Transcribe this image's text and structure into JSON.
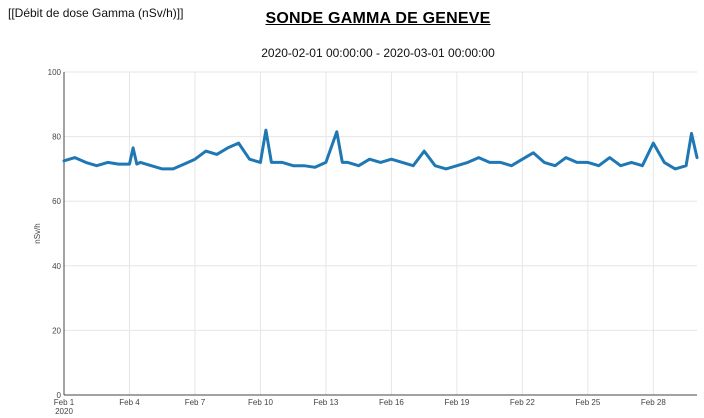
{
  "header": {
    "top_left_label": "[[Débit de dose Gamma (nSv/h)]]",
    "title": "SONDE GAMMA DE GENEVE",
    "subtitle": "2020-02-01 00:00:00 - 2020-03-01 00:00:00"
  },
  "chart_data": {
    "type": "line",
    "title": "SONDE GAMMA DE GENEVE",
    "subtitle": "2020-02-01 00:00:00 - 2020-03-01 00:00:00",
    "xlabel": "",
    "ylabel": "nSv/h",
    "x_range": [
      "2020-02-01 00:00",
      "2020-03-01 00:00"
    ],
    "ylim": [
      0,
      100
    ],
    "y_ticks": [
      0,
      20,
      40,
      60,
      80,
      100
    ],
    "x_ticks": [
      {
        "date": "2020-02-01",
        "label": "Feb 1",
        "sublabel": "2020"
      },
      {
        "date": "2020-02-04",
        "label": "Feb 4"
      },
      {
        "date": "2020-02-07",
        "label": "Feb 7"
      },
      {
        "date": "2020-02-10",
        "label": "Feb 10"
      },
      {
        "date": "2020-02-13",
        "label": "Feb 13"
      },
      {
        "date": "2020-02-16",
        "label": "Feb 16"
      },
      {
        "date": "2020-02-19",
        "label": "Feb 19"
      },
      {
        "date": "2020-02-22",
        "label": "Feb 22"
      },
      {
        "date": "2020-02-25",
        "label": "Feb 25"
      },
      {
        "date": "2020-02-28",
        "label": "Feb 28"
      }
    ],
    "grid": true,
    "legend": "none",
    "line_color": "#1f77b4",
    "series": [
      {
        "x": [
          "2020-02-01 00:00",
          "2020-02-01 12:00",
          "2020-02-02 00:00",
          "2020-02-02 12:00",
          "2020-02-03 00:00",
          "2020-02-03 12:00",
          "2020-02-04 00:00",
          "2020-02-04 04:00",
          "2020-02-04 08:00",
          "2020-02-04 12:00",
          "2020-02-05 00:00",
          "2020-02-05 12:00",
          "2020-02-06 00:00",
          "2020-02-06 12:00",
          "2020-02-07 00:00",
          "2020-02-07 12:00",
          "2020-02-08 00:00",
          "2020-02-08 12:00",
          "2020-02-09 00:00",
          "2020-02-09 12:00",
          "2020-02-10 00:00",
          "2020-02-10 06:00",
          "2020-02-10 12:00",
          "2020-02-11 00:00",
          "2020-02-11 12:00",
          "2020-02-12 00:00",
          "2020-02-12 12:00",
          "2020-02-13 00:00",
          "2020-02-13 12:00",
          "2020-02-13 18:00",
          "2020-02-14 00:00",
          "2020-02-14 12:00",
          "2020-02-15 00:00",
          "2020-02-15 12:00",
          "2020-02-16 00:00",
          "2020-02-16 12:00",
          "2020-02-17 00:00",
          "2020-02-17 12:00",
          "2020-02-18 00:00",
          "2020-02-18 12:00",
          "2020-02-19 00:00",
          "2020-02-19 12:00",
          "2020-02-20 00:00",
          "2020-02-20 12:00",
          "2020-02-21 00:00",
          "2020-02-21 12:00",
          "2020-02-22 00:00",
          "2020-02-22 12:00",
          "2020-02-23 00:00",
          "2020-02-23 12:00",
          "2020-02-24 00:00",
          "2020-02-24 12:00",
          "2020-02-25 00:00",
          "2020-02-25 12:00",
          "2020-02-26 00:00",
          "2020-02-26 12:00",
          "2020-02-27 00:00",
          "2020-02-27 12:00",
          "2020-02-28 00:00",
          "2020-02-28 12:00",
          "2020-02-29 00:00",
          "2020-02-29 12:00",
          "2020-02-29 18:00",
          "2020-03-01 00:00"
        ],
        "y": [
          72.5,
          73.5,
          72,
          71,
          72,
          71.5,
          71.5,
          76.5,
          71.5,
          72,
          71,
          70,
          70,
          71.5,
          73,
          75.5,
          74.5,
          76.5,
          78,
          73,
          72,
          82,
          72,
          72,
          71,
          71,
          70.5,
          72,
          81.5,
          72,
          72,
          71,
          73,
          72,
          73,
          72,
          71,
          75.5,
          71,
          70,
          71,
          72,
          73.5,
          72,
          72,
          71,
          73,
          75,
          72,
          71,
          73.5,
          72,
          72,
          71,
          73.5,
          71,
          72,
          71,
          78,
          72,
          70,
          71,
          81,
          73.5
        ]
      }
    ]
  }
}
